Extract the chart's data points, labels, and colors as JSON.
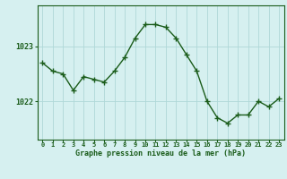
{
  "hours": [
    0,
    1,
    2,
    3,
    4,
    5,
    6,
    7,
    8,
    9,
    10,
    11,
    12,
    13,
    14,
    15,
    16,
    17,
    18,
    19,
    20,
    21,
    22,
    23
  ],
  "pressure": [
    1022.7,
    1022.55,
    1022.5,
    1022.2,
    1022.45,
    1022.4,
    1022.35,
    1022.55,
    1022.8,
    1023.15,
    1023.4,
    1023.4,
    1023.35,
    1023.15,
    1022.85,
    1022.55,
    1022.0,
    1021.7,
    1021.6,
    1021.75,
    1021.75,
    1022.0,
    1021.9,
    1022.05
  ],
  "line_color": "#1a5c1a",
  "marker_color": "#1a5c1a",
  "bg_color": "#d6f0f0",
  "grid_color": "#afd8d8",
  "axis_color": "#1a5c1a",
  "xlabel": "Graphe pression niveau de la mer (hPa)",
  "ytick_labels": [
    "1022",
    "1023"
  ],
  "ytick_values": [
    1022,
    1023
  ],
  "ylim": [
    1021.3,
    1023.75
  ],
  "xlim": [
    -0.5,
    23.5
  ],
  "xtick_label": "0 1 2 3 4 5 6 7 8 9 10111213141516171819202122 23"
}
